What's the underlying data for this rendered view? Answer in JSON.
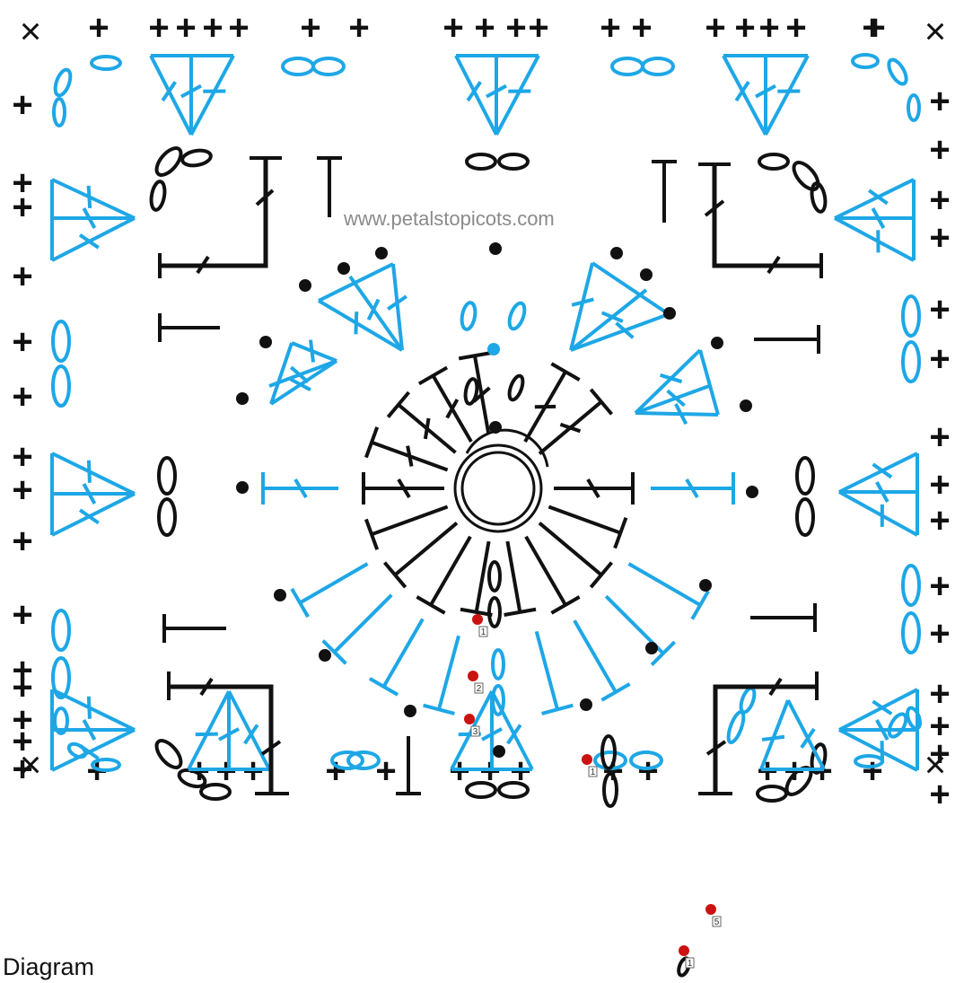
{
  "diagram": {
    "watermark": "www.petalstopicots.com",
    "caption": "Diagram",
    "colors": {
      "black": "#111111",
      "blue": "#1ea7e6",
      "marker": "#cc1111",
      "watermark": "#8a8a8a"
    },
    "symbols": {
      "cross": "×",
      "plus": "+",
      "marker_labels": [
        "1",
        "2",
        "3",
        "1",
        "5",
        "1"
      ]
    }
  }
}
